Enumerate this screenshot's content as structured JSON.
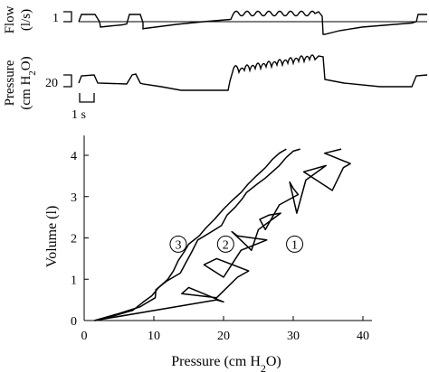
{
  "chart_data": [
    {
      "type": "line",
      "panel": "flow-trace",
      "ylabel_line1": "Flow",
      "ylabel_line2": "(l/s)",
      "reference_level": 1,
      "reference_label": "1"
    },
    {
      "type": "line",
      "panel": "pressure-trace",
      "ylabel_line1": "Pressure",
      "ylabel_line2": "(cm H",
      "ylabel_sub": "2",
      "ylabel_tail": "O)",
      "reference_level": 20,
      "reference_label": "20",
      "time_scale_label": "1 s"
    },
    {
      "type": "line",
      "panel": "pressure-volume",
      "xlabel_main": "Pressure (cm H",
      "xlabel_sub": "2",
      "xlabel_tail": "O)",
      "ylabel": "Volume (l)",
      "xlim": [
        0,
        40
      ],
      "ylim": [
        0,
        4
      ],
      "xticks": [
        0,
        10,
        20,
        30,
        40
      ],
      "yticks": [
        0,
        1,
        2,
        3,
        4
      ],
      "series": [
        {
          "name": "1",
          "points": [
            [
              1.5,
              0
            ],
            [
              19,
              0.5
            ],
            [
              20,
              0.45
            ],
            [
              15,
              0.8
            ],
            [
              14,
              0.65
            ],
            [
              19,
              0.55
            ],
            [
              22,
              1.05
            ],
            [
              23.6,
              1.2
            ],
            [
              19,
              1.5
            ],
            [
              17.2,
              1.35
            ],
            [
              20,
              1.05
            ],
            [
              22.5,
              1.7
            ],
            [
              26.2,
              1.95
            ],
            [
              22,
              2.05
            ],
            [
              21.2,
              2.15
            ],
            [
              24,
              1.7
            ],
            [
              25,
              2.2
            ],
            [
              28.2,
              2.6
            ],
            [
              26.5,
              2.55
            ],
            [
              25.2,
              2.45
            ],
            [
              26,
              2.2
            ],
            [
              28,
              2.8
            ],
            [
              30.7,
              3.05
            ],
            [
              30,
              3.2
            ],
            [
              29.5,
              3.35
            ],
            [
              30.5,
              2.6
            ],
            [
              31.8,
              3.4
            ],
            [
              34.7,
              3.75
            ],
            [
              31.5,
              3.6
            ],
            [
              35.6,
              3.15
            ],
            [
              37.2,
              3.7
            ],
            [
              38.2,
              3.8
            ],
            [
              34.5,
              4.05
            ],
            [
              36.9,
              4.15
            ]
          ]
        },
        {
          "name": "2",
          "points": [
            [
              1.5,
              0
            ],
            [
              5,
              0.17
            ],
            [
              8,
              0.33
            ],
            [
              10.2,
              0.55
            ],
            [
              10.3,
              0.75
            ],
            [
              11.8,
              0.95
            ],
            [
              13.8,
              1.15
            ],
            [
              14.6,
              1.4
            ],
            [
              15.4,
              1.65
            ],
            [
              16.3,
              1.95
            ],
            [
              17.8,
              2.1
            ],
            [
              19.7,
              2.3
            ],
            [
              20.5,
              2.55
            ],
            [
              21.7,
              2.75
            ],
            [
              22.7,
              2.95
            ],
            [
              23.3,
              3.1
            ],
            [
              24.8,
              3.3
            ],
            [
              26,
              3.45
            ],
            [
              27,
              3.6
            ],
            [
              28,
              3.75
            ],
            [
              29,
              3.95
            ],
            [
              30,
              4.1
            ],
            [
              31,
              4.15
            ]
          ]
        },
        {
          "name": "3",
          "points": [
            [
              1.5,
              0
            ],
            [
              4,
              0.1
            ],
            [
              7,
              0.25
            ],
            [
              8.5,
              0.45
            ],
            [
              9.7,
              0.6
            ],
            [
              10.7,
              0.8
            ],
            [
              12,
              1.0
            ],
            [
              12.8,
              1.2
            ],
            [
              13.5,
              1.45
            ],
            [
              14.3,
              1.65
            ],
            [
              15,
              1.85
            ],
            [
              16.5,
              2.05
            ],
            [
              17.5,
              2.25
            ],
            [
              18.7,
              2.45
            ],
            [
              20,
              2.7
            ],
            [
              21.2,
              2.9
            ],
            [
              22.5,
              3.1
            ],
            [
              23.5,
              3.3
            ],
            [
              24.7,
              3.5
            ],
            [
              26,
              3.7
            ],
            [
              27,
              3.9
            ],
            [
              28,
              4.05
            ],
            [
              29,
              4.15
            ]
          ]
        }
      ]
    }
  ]
}
